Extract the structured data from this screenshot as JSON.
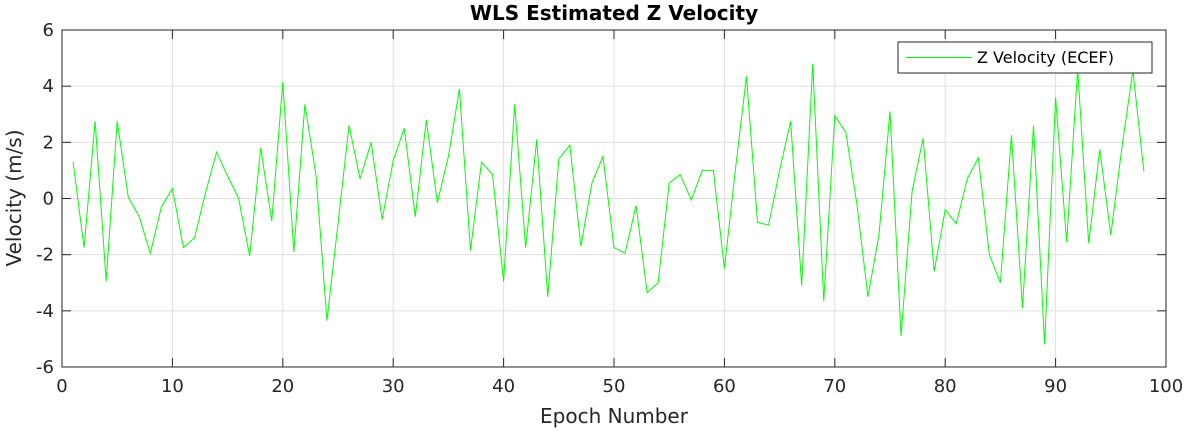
{
  "chart_data": {
    "type": "line",
    "title": "WLS Estimated Z Velocity",
    "xlabel": "Epoch Number",
    "ylabel": "Velocity (m/s)",
    "xlim": [
      0,
      100
    ],
    "ylim": [
      -6,
      6
    ],
    "xticks": [
      0,
      10,
      20,
      30,
      40,
      50,
      60,
      70,
      80,
      90,
      100
    ],
    "yticks": [
      -6,
      -4,
      -2,
      0,
      2,
      4,
      6
    ],
    "grid": true,
    "legend_position": "top-right",
    "colors": {
      "series": "#00ff00",
      "axes": "#262626",
      "grid": "#dfdfdf"
    },
    "series": [
      {
        "name": "Z Velocity (ECEF)",
        "x": [
          1,
          2,
          3,
          4,
          5,
          6,
          7,
          8,
          9,
          10,
          11,
          12,
          13,
          14,
          15,
          16,
          17,
          18,
          19,
          20,
          21,
          22,
          23,
          24,
          25,
          26,
          27,
          28,
          29,
          30,
          31,
          32,
          33,
          34,
          35,
          36,
          37,
          38,
          39,
          40,
          41,
          42,
          43,
          44,
          45,
          46,
          47,
          48,
          49,
          50,
          51,
          52,
          53,
          54,
          55,
          56,
          57,
          58,
          59,
          60,
          61,
          62,
          63,
          64,
          65,
          66,
          67,
          68,
          69,
          70,
          71,
          72,
          73,
          74,
          75,
          76,
          77,
          78,
          79,
          80,
          81,
          82,
          83,
          84,
          85,
          86,
          87,
          88,
          89,
          90,
          91,
          92,
          93,
          94,
          95,
          96,
          97,
          98
        ],
        "values": [
          1.3,
          -1.75,
          2.75,
          -2.95,
          2.75,
          0.05,
          -0.65,
          -1.95,
          -0.3,
          0.35,
          -1.75,
          -1.4,
          0.2,
          1.65,
          0.8,
          0.0,
          -2.05,
          1.8,
          -0.8,
          4.15,
          -1.9,
          3.35,
          0.85,
          -4.35,
          -0.9,
          2.6,
          0.7,
          2.0,
          -0.75,
          1.35,
          2.5,
          -0.65,
          2.8,
          -0.15,
          1.5,
          3.9,
          -1.85,
          1.3,
          0.85,
          -2.95,
          3.35,
          -1.75,
          2.1,
          -3.5,
          1.4,
          1.9,
          -1.7,
          0.55,
          1.5,
          -1.75,
          -1.95,
          -0.25,
          -3.35,
          -3.0,
          0.55,
          0.85,
          -0.05,
          1.0,
          1.0,
          -2.5,
          1.05,
          4.35,
          -0.85,
          -0.95,
          1.0,
          2.75,
          -3.1,
          4.8,
          -3.65,
          2.95,
          2.35,
          -0.2,
          -3.5,
          -1.3,
          3.1,
          -4.9,
          0.25,
          2.15,
          -2.6,
          -0.4,
          -0.9,
          0.7,
          1.45,
          -2.0,
          -3.0,
          2.25,
          -3.9,
          2.6,
          -5.2,
          3.6,
          -1.55,
          4.6,
          -1.6,
          1.75,
          -1.3,
          1.8,
          4.55,
          0.95
        ]
      }
    ]
  }
}
